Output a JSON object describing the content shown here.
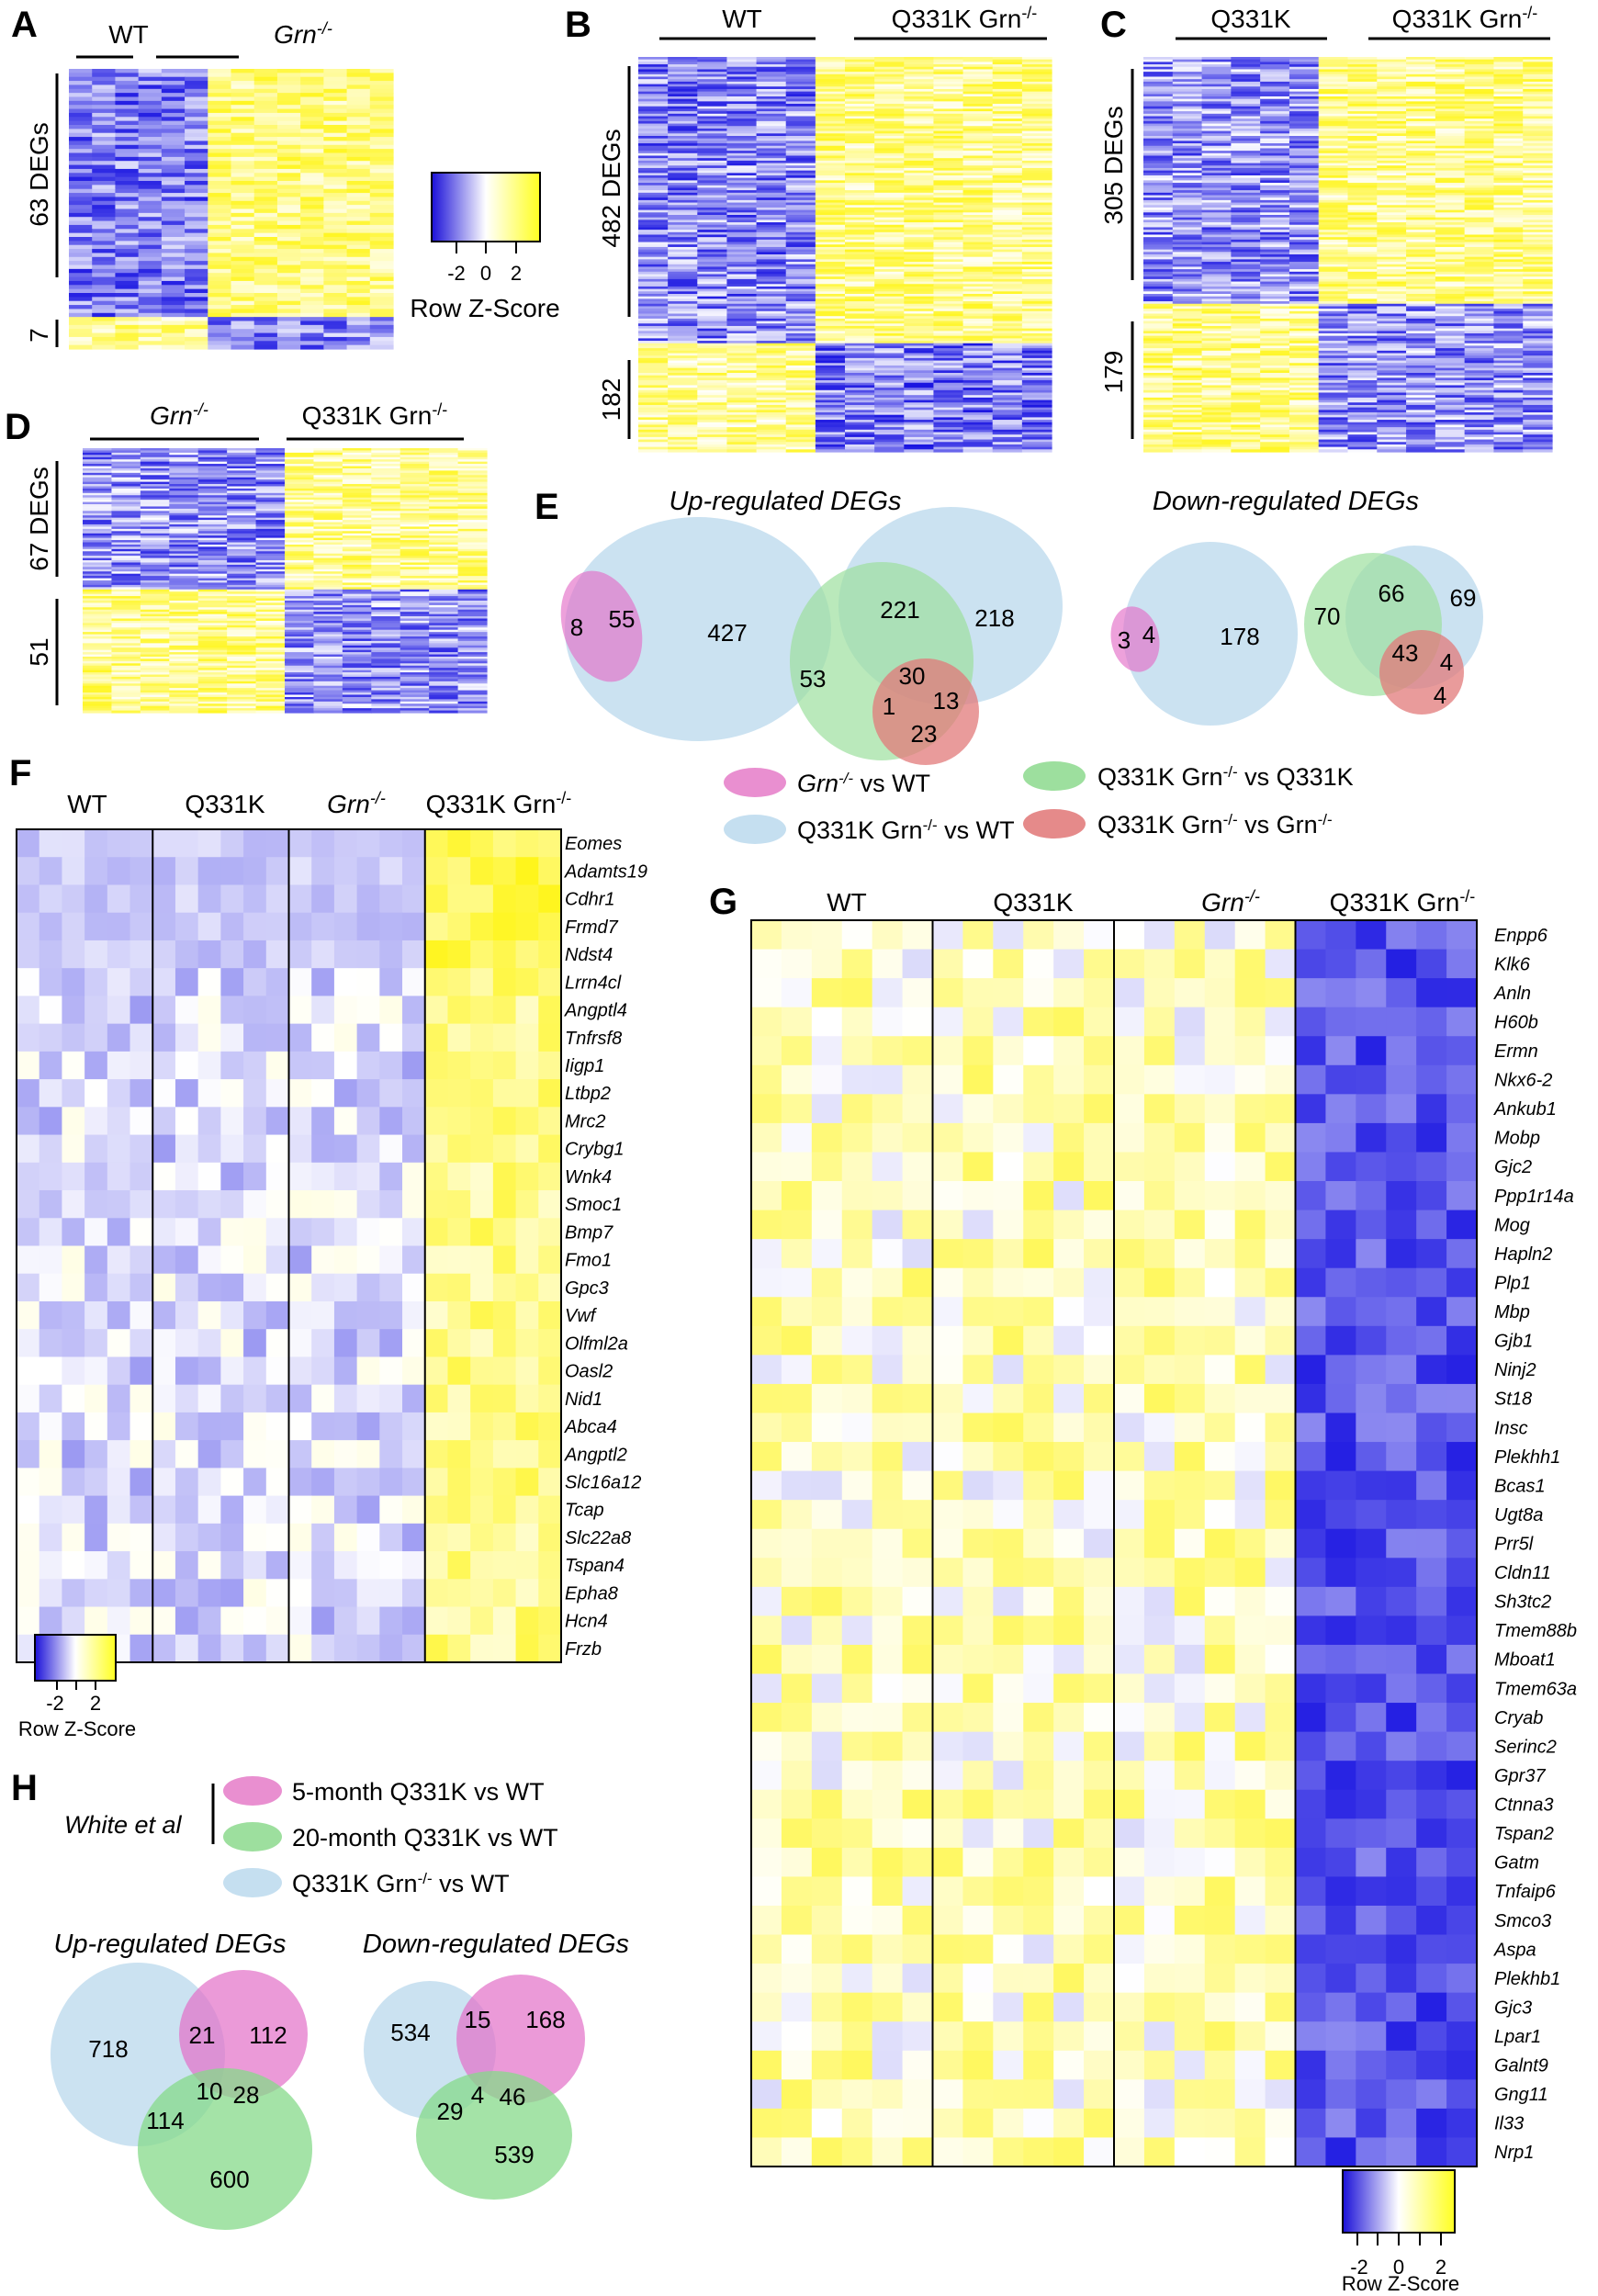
{
  "panels": {
    "A": {
      "label": "A",
      "groups": [
        {
          "text": "WT",
          "sup": ""
        },
        {
          "text": "Grn",
          "sup": "-/-"
        }
      ],
      "counts": [
        "63 DEGs",
        "7"
      ],
      "scale": {
        "ticks": [
          "-2",
          "0",
          "2"
        ],
        "title": "Row Z-Score"
      }
    },
    "B": {
      "label": "B",
      "groups": [
        {
          "text": "WT",
          "sup": ""
        },
        {
          "text": "Q331K Grn",
          "sup": "-/-"
        }
      ],
      "counts": [
        "482 DEGs",
        "182"
      ]
    },
    "C": {
      "label": "C",
      "groups": [
        {
          "text": "Q331K",
          "sup": ""
        },
        {
          "text": "Q331K Grn",
          "sup": "-/-"
        }
      ],
      "counts": [
        "305 DEGs",
        "179"
      ]
    },
    "D": {
      "label": "D",
      "groups": [
        {
          "text": "Grn",
          "sup": "-/-"
        },
        {
          "text": "Q331K Grn",
          "sup": "-/-"
        }
      ],
      "counts": [
        "67 DEGs",
        "51"
      ]
    },
    "E": {
      "label": "E",
      "up_title": "Up-regulated DEGs",
      "down_title": "Down-regulated DEGs",
      "up_pair": [
        "8",
        "55",
        "427"
      ],
      "up_triple": [
        "221",
        "218",
        "53",
        "30",
        "1",
        "13",
        "23"
      ],
      "down_pair": [
        "3",
        "4",
        "178"
      ],
      "down_triple": [
        "70",
        "66",
        "69",
        "43",
        "4",
        "4"
      ],
      "legend": [
        {
          "text": "Grn",
          "sup": "-/-",
          "rest": " vs WT",
          "color": "#e98fd0"
        },
        {
          "text": "Q331K Grn",
          "sup": "-/-",
          "rest": " vs WT",
          "color": "#c5dff0"
        },
        {
          "text": "Q331K Grn",
          "sup": "-/-",
          "rest": " vs Q331K",
          "color": "#9ddf9e"
        },
        {
          "text": "Q331K Grn",
          "sup": "-/-",
          "rest": " vs Grn",
          "sup2": "-/-",
          "color": "#e58a8a"
        }
      ]
    },
    "F": {
      "label": "F",
      "groups": [
        {
          "text": "WT",
          "sup": ""
        },
        {
          "text": "Q331K",
          "sup": ""
        },
        {
          "text": "Grn",
          "sup": "-/-"
        },
        {
          "text": "Q331K Grn",
          "sup": "-/-"
        }
      ],
      "genes": [
        "Eomes",
        "Adamts19",
        "Cdhr1",
        "Frmd7",
        "Ndst4",
        "Lrrn4cl",
        "Angptl4",
        "Tnfrsf8",
        "Iigp1",
        "Ltbp2",
        "Mrc2",
        "Crybg1",
        "Wnk4",
        "Smoc1",
        "Bmp7",
        "Fmo1",
        "Gpc3",
        "Vwf",
        "Olfml2a",
        "Oasl2",
        "Nid1",
        "Abca4",
        "Angptl2",
        "Slc16a12",
        "Tcap",
        "Slc22a8",
        "Tspan4",
        "Epha8",
        "Hcn4",
        "Frzb"
      ],
      "scale": {
        "ticks": [
          "-2",
          "2"
        ],
        "title": "Row Z-Score"
      }
    },
    "G": {
      "label": "G",
      "groups": [
        {
          "text": "WT",
          "sup": ""
        },
        {
          "text": "Q331K",
          "sup": ""
        },
        {
          "text": "Grn",
          "sup": "-/-"
        },
        {
          "text": "Q331K Grn",
          "sup": "-/-"
        }
      ],
      "genes": [
        "Enpp6",
        "Klk6",
        "Anln",
        "H60b",
        "Ermn",
        "Nkx6-2",
        "Ankub1",
        "Mobp",
        "Gjc2",
        "Ppp1r14a",
        "Mog",
        "Hapln2",
        "Plp1",
        "Mbp",
        "Gjb1",
        "Ninj2",
        "St18",
        "Insc",
        "Plekhh1",
        "Bcas1",
        "Ugt8a",
        "Prr5l",
        "Cldn11",
        "Sh3tc2",
        "Tmem88b",
        "Mboat1",
        "Tmem63a",
        "Cryab",
        "Serinc2",
        "Gpr37",
        "Ctnna3",
        "Tspan2",
        "Gatm",
        "Tnfaip6",
        "Smco3",
        "Aspa",
        "Plekhb1",
        "Gjc3",
        "Lpar1",
        "Galnt9",
        "Gng11",
        "Il33",
        "Nrp1"
      ],
      "scale": {
        "ticks": [
          "-2",
          "0",
          "2"
        ],
        "title": "Row Z-Score"
      }
    },
    "H": {
      "label": "H",
      "source": "White et al",
      "legend": [
        {
          "text": "5-month Q331K vs WT",
          "color": "#e98fd0"
        },
        {
          "text": "20-month Q331K vs WT",
          "color": "#9ddf9e"
        },
        {
          "text": "Q331K Grn-/- vs WT",
          "main": "Q331K Grn",
          "sup": "-/-",
          "rest": " vs WT",
          "color": "#c5dff0"
        }
      ],
      "up_title": "Up-regulated DEGs",
      "down_title": "Down-regulated DEGs",
      "up": [
        "718",
        "21",
        "112",
        "10",
        "28",
        "114",
        "600"
      ],
      "down": [
        "534",
        "15",
        "168",
        "4",
        "46",
        "29",
        "539"
      ]
    }
  }
}
